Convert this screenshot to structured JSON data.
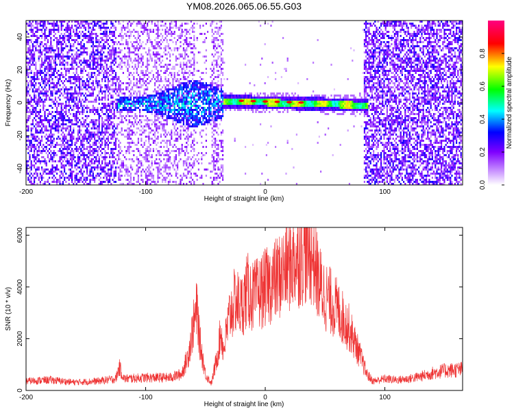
{
  "title": "YM08.2026.065.06.55.G03",
  "chart_data": [
    {
      "type": "heatmap",
      "xlabel": "Height of straight line (km)",
      "ylabel": "Frequency (Hz)",
      "xlim": [
        -200,
        165
      ],
      "ylim": [
        -50,
        50
      ],
      "xticks": [
        -200,
        -100,
        0,
        100
      ],
      "yticks": [
        -40,
        -20,
        0,
        20,
        40
      ],
      "colorbar": {
        "label": "Normalized spectral amplitude",
        "range": [
          0,
          1
        ],
        "ticks": [
          "0.0",
          "0.2",
          "0.4",
          "0.6",
          "0.8"
        ],
        "colors": [
          "#ffffff",
          "#7f00ff",
          "#0000ff",
          "#00ffff",
          "#00ff00",
          "#ffff00",
          "#ff0000",
          "#ff00ff"
        ]
      },
      "features": [
        {
          "name": "noise band left",
          "x_range": [
            -200,
            -125
          ]
        },
        {
          "name": "broadband burst",
          "x_range": [
            -125,
            -35
          ]
        },
        {
          "name": "narrow line near 0 Hz",
          "x_range": [
            -35,
            85
          ],
          "peak_amplitude": 0.9
        },
        {
          "name": "noise band right",
          "x_range": [
            82,
            165
          ]
        }
      ]
    },
    {
      "type": "line",
      "xlabel": "Height of straight line (km)",
      "ylabel": "SNR (10 * v/v)",
      "xlim": [
        -200,
        165
      ],
      "ylim": [
        0,
        6300
      ],
      "xticks": [
        -200,
        -100,
        0,
        100
      ],
      "yticks": [
        0,
        2000,
        4000,
        6000
      ],
      "line_color": "#ee3333",
      "envelope": {
        "x": [
          -200,
          -180,
          -160,
          -140,
          -125,
          -122,
          -118,
          -100,
          -80,
          -70,
          -65,
          -60,
          -57,
          -55,
          -50,
          -45,
          -40,
          -37,
          -35,
          -30,
          -25,
          -20,
          -15,
          -10,
          -5,
          0,
          10,
          20,
          30,
          35,
          40,
          45,
          50,
          60,
          70,
          80,
          85,
          90,
          100,
          110,
          120,
          130,
          140,
          150,
          165
        ],
        "y": [
          400,
          450,
          350,
          400,
          500,
          1000,
          500,
          550,
          550,
          700,
          1400,
          2800,
          3500,
          2200,
          700,
          300,
          1500,
          2600,
          1700,
          3200,
          3900,
          3600,
          4300,
          4000,
          4200,
          4400,
          4800,
          5400,
          5800,
          6000,
          5800,
          4600,
          4100,
          3500,
          2700,
          1400,
          700,
          400,
          500,
          450,
          500,
          600,
          750,
          850,
          900
        ]
      }
    }
  ]
}
